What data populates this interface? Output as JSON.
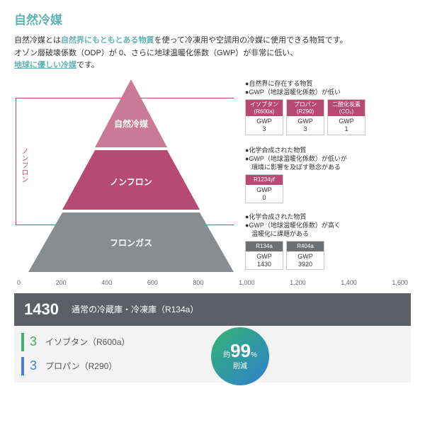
{
  "colors": {
    "teal": "#5fb3b3",
    "rose": "#b74a72",
    "roseLight": "#c97a96",
    "gray": "#8a8d90",
    "grayDark": "#6e7174",
    "barDark": "#5c5f63",
    "green": "#3fae6a",
    "blue": "#4a7dc9",
    "circleA": "#35b56f",
    "circleB": "#2e7fd1"
  },
  "title": "自然冷媒",
  "intro": {
    "l1a": "自然冷媒とは",
    "l1b": "自然界にもともとある物質",
    "l1c": "を使って冷凍用や空調用の冷媒に使用できる物質です。",
    "l2": "オゾン層破壊係数（ODP）が 0、さらに地球温暖化係数（GWP）が非常に低い、",
    "l3a": "地球に優しい冷媒",
    "l3b": "です。"
  },
  "pyramid": {
    "sideLabel": "ノンフロン",
    "tiers": [
      {
        "label": "自然冷媒",
        "bullets": [
          "●自然界に存在する物質",
          "●GWP（地球温暖化係数）が低い"
        ],
        "cards": [
          {
            "h1": "イソブタン",
            "h2": "(R600a)",
            "v": "GWP\n3"
          },
          {
            "h1": "プロパン",
            "h2": "(R290)",
            "v": "GWP\n3"
          },
          {
            "h1": "二酸化炭素",
            "h2": "(CO₂)",
            "v": "GWP\n1"
          }
        ]
      },
      {
        "label": "ノンフロン",
        "bullets": [
          "●化学合成された物質",
          "●GWP（地球温暖化係数）が低いが",
          "　環境に影響を及ぼす懸念がある"
        ],
        "cards": [
          {
            "h1": "R1234yf",
            "h2": "",
            "v": "GWP\n0"
          }
        ]
      },
      {
        "label": "フロンガス",
        "bullets": [
          "●化学合成された物質",
          "●GWP（地球温暖化係数）が高く",
          "　温暖化に課題がある"
        ],
        "cards": [
          {
            "h1": "R134a",
            "h2": "",
            "v": "GWP\n1430"
          },
          {
            "h1": "R404a",
            "h2": "",
            "v": "GWP\n3920"
          }
        ]
      }
    ]
  },
  "axis": [
    "0",
    "200",
    "400",
    "600",
    "800",
    "1,000",
    "1,200",
    "1,400",
    "1,600"
  ],
  "bars": {
    "main": {
      "n": "1430",
      "t": "通常の冷蔵庫・冷凍庫（R134a）"
    },
    "r2": {
      "n": "3",
      "t": "イソブタン（R600a）"
    },
    "r3": {
      "n": "3",
      "t": "プロパン（R290）"
    },
    "circle": {
      "pre": "約",
      "big": "99",
      "pct": "%",
      "sub": "削減"
    }
  }
}
